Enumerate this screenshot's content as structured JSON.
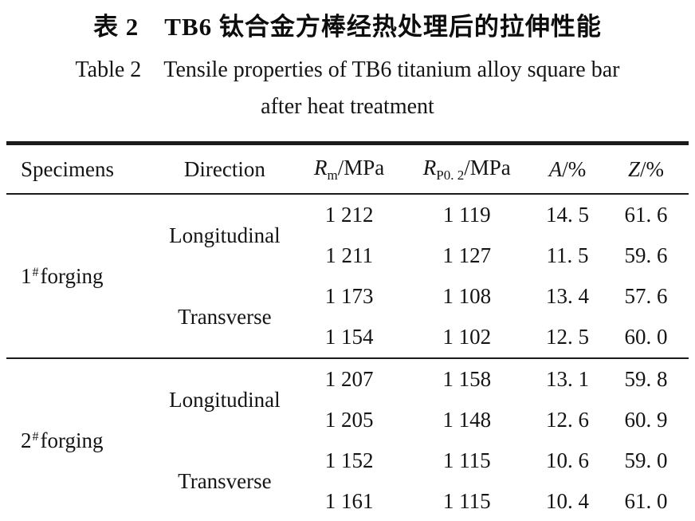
{
  "caption": {
    "chinese": "表 2　TB6 钛合金方棒经热处理后的拉伸性能",
    "english_line1": "Table 2　Tensile properties of TB6 titanium alloy square bar",
    "english_line2": "after heat treatment"
  },
  "table": {
    "headers": {
      "specimens": "Specimens",
      "direction": "Direction",
      "rm": {
        "sym": "R",
        "sub": "m",
        "rest": "/MPa"
      },
      "rp": {
        "sym": "R",
        "sub": "P0. 2",
        "rest": "/MPa"
      },
      "a": {
        "sym": "A",
        "rest": "/%"
      },
      "z": {
        "sym": "Z",
        "rest": "/%"
      }
    },
    "groups": [
      {
        "specimen": {
          "num": "1",
          "sup": "#",
          "text": "forging"
        },
        "directions": [
          {
            "label": "Longitudinal",
            "rows": [
              [
                "1 212",
                "1 119",
                "14. 5",
                "61. 6"
              ],
              [
                "1 211",
                "1 127",
                "11. 5",
                "59. 6"
              ]
            ]
          },
          {
            "label": "Transverse",
            "rows": [
              [
                "1 173",
                "1 108",
                "13. 4",
                "57. 6"
              ],
              [
                "1 154",
                "1 102",
                "12. 5",
                "60. 0"
              ]
            ]
          }
        ]
      },
      {
        "specimen": {
          "num": "2",
          "sup": "#",
          "text": "forging"
        },
        "directions": [
          {
            "label": "Longitudinal",
            "rows": [
              [
                "1 207",
                "1 158",
                "13. 1",
                "59. 8"
              ],
              [
                "1 205",
                "1 148",
                "12. 6",
                "60. 9"
              ]
            ]
          },
          {
            "label": "Transverse",
            "rows": [
              [
                "1 152",
                "1 115",
                "10. 6",
                "59. 0"
              ],
              [
                "1 161",
                "1 115",
                "10. 4",
                "61. 0"
              ]
            ]
          }
        ]
      }
    ]
  },
  "chart_data": {
    "type": "table",
    "title": "Table 2 Tensile properties of TB6 titanium alloy square bar after heat treatment",
    "title_chinese": "表2 TB6钛合金方棒经热处理后的拉伸性能",
    "columns": [
      "Specimens",
      "Direction",
      "Rm/MPa",
      "RP0.2/MPa",
      "A/%",
      "Z/%"
    ],
    "rows": [
      [
        "1# forging",
        "Longitudinal",
        1212,
        1119,
        14.5,
        61.6
      ],
      [
        "1# forging",
        "Longitudinal",
        1211,
        1127,
        11.5,
        59.6
      ],
      [
        "1# forging",
        "Transverse",
        1173,
        1108,
        13.4,
        57.6
      ],
      [
        "1# forging",
        "Transverse",
        1154,
        1102,
        12.5,
        60.0
      ],
      [
        "2# forging",
        "Longitudinal",
        1207,
        1158,
        13.1,
        59.8
      ],
      [
        "2# forging",
        "Longitudinal",
        1205,
        1148,
        12.6,
        60.9
      ],
      [
        "2# forging",
        "Transverse",
        1152,
        1115,
        10.6,
        59.0
      ],
      [
        "2# forging",
        "Transverse",
        1161,
        1115,
        10.4,
        61.0
      ]
    ]
  }
}
